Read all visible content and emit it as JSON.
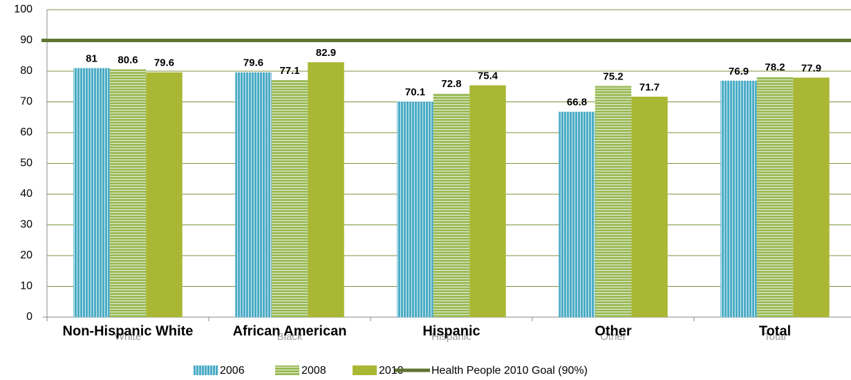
{
  "chart_data": {
    "type": "bar",
    "categories": [
      "White",
      "Black",
      "Hispanic",
      "Other",
      "Total"
    ],
    "group_labels": [
      "Non-Hispanic White",
      "African American",
      "Hispanic",
      "Other",
      "Total"
    ],
    "series": [
      {
        "name": "2006",
        "color": "#4bacc6",
        "pattern": "vertical",
        "values": [
          81,
          79.6,
          70.1,
          66.8,
          76.9
        ]
      },
      {
        "name": "2008",
        "color": "#9bbb59",
        "pattern": "horizontal",
        "values": [
          80.6,
          77.1,
          72.8,
          75.2,
          78.2
        ]
      },
      {
        "name": "2010",
        "color": "#a9b734",
        "pattern": "solid",
        "values": [
          79.6,
          82.9,
          75.4,
          71.7,
          77.9
        ]
      }
    ],
    "reference_line": {
      "name": "Health People 2010 Goal (90%)",
      "value": 90,
      "color": "#5f7530"
    },
    "ylim": [
      0,
      100
    ],
    "yticks": [
      0,
      10,
      20,
      30,
      40,
      50,
      60,
      70,
      80,
      90,
      100
    ],
    "grid": true,
    "grid_color": "#77933c",
    "legend": "bottom"
  }
}
